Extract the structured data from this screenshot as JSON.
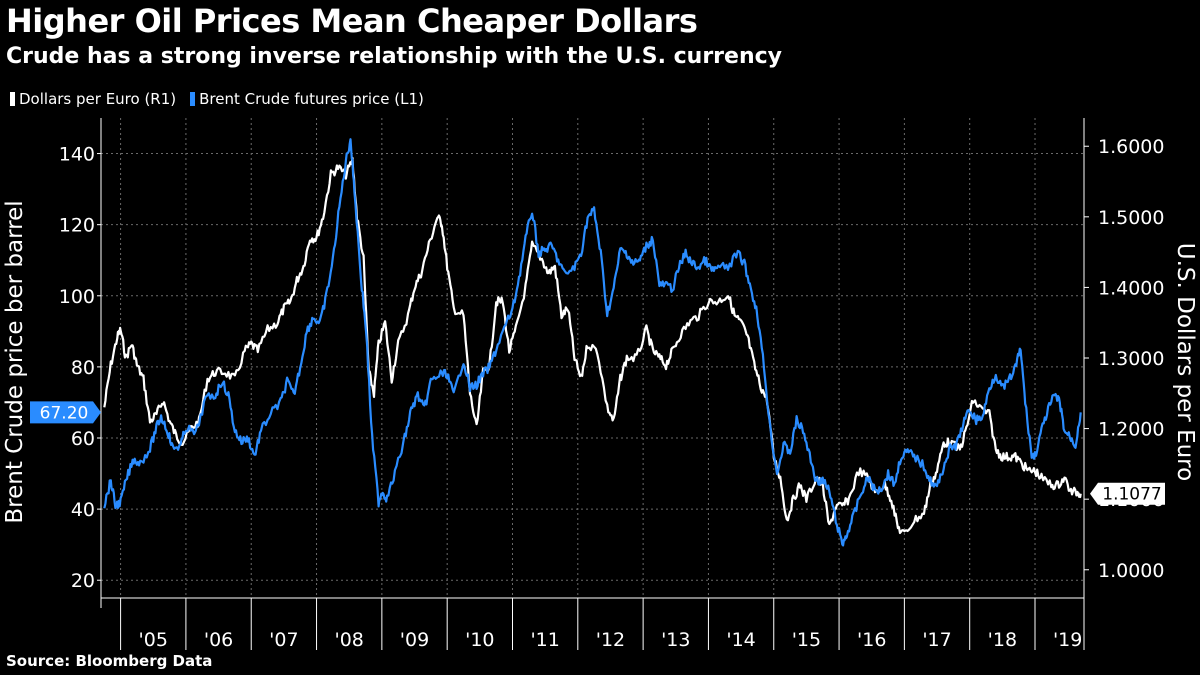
{
  "header": {
    "title": "Higher Oil Prices Mean Cheaper Dollars",
    "subtitle": "Crude has a strong inverse relationship with the U.S. currency",
    "source": "Source: Bloomberg Data"
  },
  "colors": {
    "background": "#000000",
    "eur": "#ffffff",
    "brent": "#2a8cff",
    "grid": "#6a6a6a"
  },
  "chart_data": {
    "type": "line",
    "title": "Higher Oil Prices Mean Cheaper Dollars",
    "subtitle": "Crude has a strong inverse relationship with the U.S. currency",
    "x_tick_labels": [
      "'05",
      "'06",
      "'07",
      "'08",
      "'09",
      "'10",
      "'11",
      "'12",
      "'13",
      "'14",
      "'15",
      "'16",
      "'17",
      "'18",
      "'19"
    ],
    "xlim": [
      2004.7,
      2019.75
    ],
    "left_axis": {
      "label": "Brent Crude price ber barrel",
      "ticks": [
        "20",
        "40",
        "60",
        "80",
        "100",
        "120",
        "140"
      ],
      "ylim": [
        15,
        150
      ]
    },
    "right_axis": {
      "label": "U.S. Dollars per Euro",
      "ticks": [
        "1.0000",
        "1.1000",
        "1.2000",
        "1.3000",
        "1.4000",
        "1.5000",
        "1.6000"
      ],
      "ylim": [
        0.96,
        1.64
      ]
    },
    "grid": true,
    "legend_position": "top-left",
    "last_values": {
      "brent": "67.20",
      "eur": "1.1077"
    },
    "series": [
      {
        "name": "Dollars per Euro (R1)",
        "axis": "right",
        "points": [
          [
            2004.75,
            1.23
          ],
          [
            2004.85,
            1.29
          ],
          [
            2004.95,
            1.33
          ],
          [
            2005.0,
            1.34
          ],
          [
            2005.08,
            1.3
          ],
          [
            2005.17,
            1.32
          ],
          [
            2005.25,
            1.29
          ],
          [
            2005.35,
            1.27
          ],
          [
            2005.45,
            1.21
          ],
          [
            2005.55,
            1.22
          ],
          [
            2005.65,
            1.24
          ],
          [
            2005.75,
            1.21
          ],
          [
            2005.85,
            1.19
          ],
          [
            2005.95,
            1.18
          ],
          [
            2006.08,
            1.2
          ],
          [
            2006.2,
            1.21
          ],
          [
            2006.33,
            1.27
          ],
          [
            2006.45,
            1.28
          ],
          [
            2006.6,
            1.28
          ],
          [
            2006.75,
            1.27
          ],
          [
            2006.9,
            1.31
          ],
          [
            2007.0,
            1.32
          ],
          [
            2007.1,
            1.31
          ],
          [
            2007.25,
            1.34
          ],
          [
            2007.4,
            1.35
          ],
          [
            2007.5,
            1.37
          ],
          [
            2007.6,
            1.38
          ],
          [
            2007.7,
            1.41
          ],
          [
            2007.8,
            1.43
          ],
          [
            2007.9,
            1.47
          ],
          [
            2008.0,
            1.47
          ],
          [
            2008.1,
            1.5
          ],
          [
            2008.22,
            1.56
          ],
          [
            2008.33,
            1.57
          ],
          [
            2008.45,
            1.56
          ],
          [
            2008.55,
            1.58
          ],
          [
            2008.62,
            1.5
          ],
          [
            2008.72,
            1.44
          ],
          [
            2008.8,
            1.28
          ],
          [
            2008.88,
            1.25
          ],
          [
            2008.95,
            1.32
          ],
          [
            2009.05,
            1.35
          ],
          [
            2009.15,
            1.27
          ],
          [
            2009.25,
            1.32
          ],
          [
            2009.4,
            1.36
          ],
          [
            2009.5,
            1.4
          ],
          [
            2009.6,
            1.42
          ],
          [
            2009.72,
            1.46
          ],
          [
            2009.85,
            1.5
          ],
          [
            2009.92,
            1.49
          ],
          [
            2010.0,
            1.43
          ],
          [
            2010.1,
            1.37
          ],
          [
            2010.25,
            1.36
          ],
          [
            2010.35,
            1.25
          ],
          [
            2010.45,
            1.2
          ],
          [
            2010.55,
            1.28
          ],
          [
            2010.65,
            1.29
          ],
          [
            2010.75,
            1.38
          ],
          [
            2010.85,
            1.38
          ],
          [
            2010.95,
            1.31
          ],
          [
            2011.05,
            1.34
          ],
          [
            2011.2,
            1.4
          ],
          [
            2011.3,
            1.46
          ],
          [
            2011.45,
            1.44
          ],
          [
            2011.55,
            1.42
          ],
          [
            2011.65,
            1.43
          ],
          [
            2011.75,
            1.36
          ],
          [
            2011.85,
            1.37
          ],
          [
            2011.95,
            1.3
          ],
          [
            2012.05,
            1.27
          ],
          [
            2012.15,
            1.32
          ],
          [
            2012.3,
            1.31
          ],
          [
            2012.45,
            1.23
          ],
          [
            2012.55,
            1.21
          ],
          [
            2012.65,
            1.27
          ],
          [
            2012.75,
            1.3
          ],
          [
            2012.9,
            1.3
          ],
          [
            2013.05,
            1.34
          ],
          [
            2013.15,
            1.31
          ],
          [
            2013.25,
            1.3
          ],
          [
            2013.35,
            1.29
          ],
          [
            2013.45,
            1.31
          ],
          [
            2013.55,
            1.33
          ],
          [
            2013.7,
            1.35
          ],
          [
            2013.85,
            1.36
          ],
          [
            2014.0,
            1.38
          ],
          [
            2014.15,
            1.38
          ],
          [
            2014.3,
            1.39
          ],
          [
            2014.4,
            1.36
          ],
          [
            2014.5,
            1.35
          ],
          [
            2014.6,
            1.33
          ],
          [
            2014.7,
            1.29
          ],
          [
            2014.8,
            1.26
          ],
          [
            2014.9,
            1.24
          ],
          [
            2015.0,
            1.16
          ],
          [
            2015.1,
            1.13
          ],
          [
            2015.2,
            1.07
          ],
          [
            2015.3,
            1.1
          ],
          [
            2015.4,
            1.12
          ],
          [
            2015.5,
            1.1
          ],
          [
            2015.65,
            1.13
          ],
          [
            2015.75,
            1.12
          ],
          [
            2015.85,
            1.06
          ],
          [
            2015.95,
            1.09
          ],
          [
            2016.05,
            1.09
          ],
          [
            2016.15,
            1.1
          ],
          [
            2016.3,
            1.14
          ],
          [
            2016.45,
            1.13
          ],
          [
            2016.55,
            1.11
          ],
          [
            2016.7,
            1.12
          ],
          [
            2016.8,
            1.1
          ],
          [
            2016.9,
            1.06
          ],
          [
            2017.0,
            1.05
          ],
          [
            2017.15,
            1.07
          ],
          [
            2017.3,
            1.08
          ],
          [
            2017.4,
            1.12
          ],
          [
            2017.5,
            1.14
          ],
          [
            2017.6,
            1.18
          ],
          [
            2017.7,
            1.18
          ],
          [
            2017.85,
            1.17
          ],
          [
            2017.95,
            1.2
          ],
          [
            2018.05,
            1.24
          ],
          [
            2018.15,
            1.23
          ],
          [
            2018.3,
            1.22
          ],
          [
            2018.4,
            1.17
          ],
          [
            2018.5,
            1.16
          ],
          [
            2018.6,
            1.16
          ],
          [
            2018.7,
            1.16
          ],
          [
            2018.8,
            1.15
          ],
          [
            2018.9,
            1.14
          ],
          [
            2019.0,
            1.14
          ],
          [
            2019.1,
            1.13
          ],
          [
            2019.25,
            1.12
          ],
          [
            2019.35,
            1.12
          ],
          [
            2019.45,
            1.13
          ],
          [
            2019.55,
            1.11
          ],
          [
            2019.65,
            1.11
          ],
          [
            2019.7,
            1.1077
          ]
        ]
      },
      {
        "name": "Brent Crude futures price (L1)",
        "axis": "left",
        "points": [
          [
            2004.75,
            41
          ],
          [
            2004.85,
            48
          ],
          [
            2004.92,
            41
          ],
          [
            2005.0,
            42
          ],
          [
            2005.1,
            49
          ],
          [
            2005.2,
            54
          ],
          [
            2005.3,
            53
          ],
          [
            2005.45,
            57
          ],
          [
            2005.55,
            63
          ],
          [
            2005.62,
            66
          ],
          [
            2005.72,
            62
          ],
          [
            2005.8,
            57
          ],
          [
            2005.92,
            58
          ],
          [
            2006.0,
            63
          ],
          [
            2006.15,
            61
          ],
          [
            2006.3,
            71
          ],
          [
            2006.45,
            72
          ],
          [
            2006.55,
            76
          ],
          [
            2006.65,
            72
          ],
          [
            2006.75,
            62
          ],
          [
            2006.85,
            59
          ],
          [
            2006.95,
            60
          ],
          [
            2007.05,
            55
          ],
          [
            2007.15,
            62
          ],
          [
            2007.3,
            67
          ],
          [
            2007.45,
            70
          ],
          [
            2007.55,
            76
          ],
          [
            2007.65,
            72
          ],
          [
            2007.75,
            80
          ],
          [
            2007.85,
            90
          ],
          [
            2007.95,
            94
          ],
          [
            2008.05,
            92
          ],
          [
            2008.15,
            100
          ],
          [
            2008.25,
            110
          ],
          [
            2008.35,
            125
          ],
          [
            2008.45,
            138
          ],
          [
            2008.52,
            144
          ],
          [
            2008.58,
            130
          ],
          [
            2008.68,
            105
          ],
          [
            2008.76,
            90
          ],
          [
            2008.85,
            60
          ],
          [
            2008.95,
            42
          ],
          [
            2009.0,
            45
          ],
          [
            2009.08,
            43
          ],
          [
            2009.2,
            50
          ],
          [
            2009.35,
            60
          ],
          [
            2009.45,
            68
          ],
          [
            2009.55,
            72
          ],
          [
            2009.65,
            68
          ],
          [
            2009.75,
            76
          ],
          [
            2009.9,
            78
          ],
          [
            2010.0,
            78
          ],
          [
            2010.1,
            72
          ],
          [
            2010.25,
            82
          ],
          [
            2010.35,
            74
          ],
          [
            2010.45,
            75
          ],
          [
            2010.55,
            78
          ],
          [
            2010.65,
            80
          ],
          [
            2010.75,
            85
          ],
          [
            2010.9,
            92
          ],
          [
            2011.0,
            96
          ],
          [
            2011.1,
            105
          ],
          [
            2011.2,
            116
          ],
          [
            2011.3,
            124
          ],
          [
            2011.4,
            112
          ],
          [
            2011.5,
            113
          ],
          [
            2011.6,
            114
          ],
          [
            2011.7,
            110
          ],
          [
            2011.8,
            106
          ],
          [
            2011.95,
            108
          ],
          [
            2012.05,
            112
          ],
          [
            2012.15,
            122
          ],
          [
            2012.25,
            124
          ],
          [
            2012.35,
            112
          ],
          [
            2012.45,
            95
          ],
          [
            2012.55,
            102
          ],
          [
            2012.65,
            113
          ],
          [
            2012.75,
            112
          ],
          [
            2012.85,
            109
          ],
          [
            2012.95,
            110
          ],
          [
            2013.05,
            114
          ],
          [
            2013.15,
            116
          ],
          [
            2013.25,
            103
          ],
          [
            2013.35,
            103
          ],
          [
            2013.45,
            102
          ],
          [
            2013.55,
            108
          ],
          [
            2013.65,
            112
          ],
          [
            2013.75,
            109
          ],
          [
            2013.85,
            108
          ],
          [
            2013.95,
            110
          ],
          [
            2014.05,
            107
          ],
          [
            2014.15,
            108
          ],
          [
            2014.3,
            108
          ],
          [
            2014.45,
            112
          ],
          [
            2014.55,
            109
          ],
          [
            2014.65,
            102
          ],
          [
            2014.75,
            95
          ],
          [
            2014.85,
            80
          ],
          [
            2014.95,
            62
          ],
          [
            2015.05,
            50
          ],
          [
            2015.15,
            58
          ],
          [
            2015.25,
            56
          ],
          [
            2015.35,
            65
          ],
          [
            2015.45,
            62
          ],
          [
            2015.55,
            55
          ],
          [
            2015.65,
            48
          ],
          [
            2015.75,
            48
          ],
          [
            2015.85,
            45
          ],
          [
            2015.95,
            37
          ],
          [
            2016.05,
            30
          ],
          [
            2016.12,
            33
          ],
          [
            2016.22,
            38
          ],
          [
            2016.35,
            45
          ],
          [
            2016.45,
            49
          ],
          [
            2016.55,
            45
          ],
          [
            2016.65,
            46
          ],
          [
            2016.75,
            50
          ],
          [
            2016.85,
            47
          ],
          [
            2016.95,
            55
          ],
          [
            2017.05,
            56
          ],
          [
            2017.15,
            55
          ],
          [
            2017.3,
            52
          ],
          [
            2017.4,
            48
          ],
          [
            2017.5,
            46
          ],
          [
            2017.6,
            52
          ],
          [
            2017.7,
            57
          ],
          [
            2017.8,
            58
          ],
          [
            2017.9,
            64
          ],
          [
            2018.0,
            68
          ],
          [
            2018.1,
            65
          ],
          [
            2018.2,
            66
          ],
          [
            2018.3,
            74
          ],
          [
            2018.4,
            78
          ],
          [
            2018.5,
            74
          ],
          [
            2018.6,
            76
          ],
          [
            2018.7,
            80
          ],
          [
            2018.78,
            85
          ],
          [
            2018.85,
            70
          ],
          [
            2018.95,
            55
          ],
          [
            2019.0,
            55
          ],
          [
            2019.1,
            62
          ],
          [
            2019.2,
            68
          ],
          [
            2019.3,
            72
          ],
          [
            2019.38,
            70
          ],
          [
            2019.45,
            62
          ],
          [
            2019.55,
            60
          ],
          [
            2019.62,
            58
          ],
          [
            2019.7,
            67.2
          ]
        ]
      }
    ]
  }
}
